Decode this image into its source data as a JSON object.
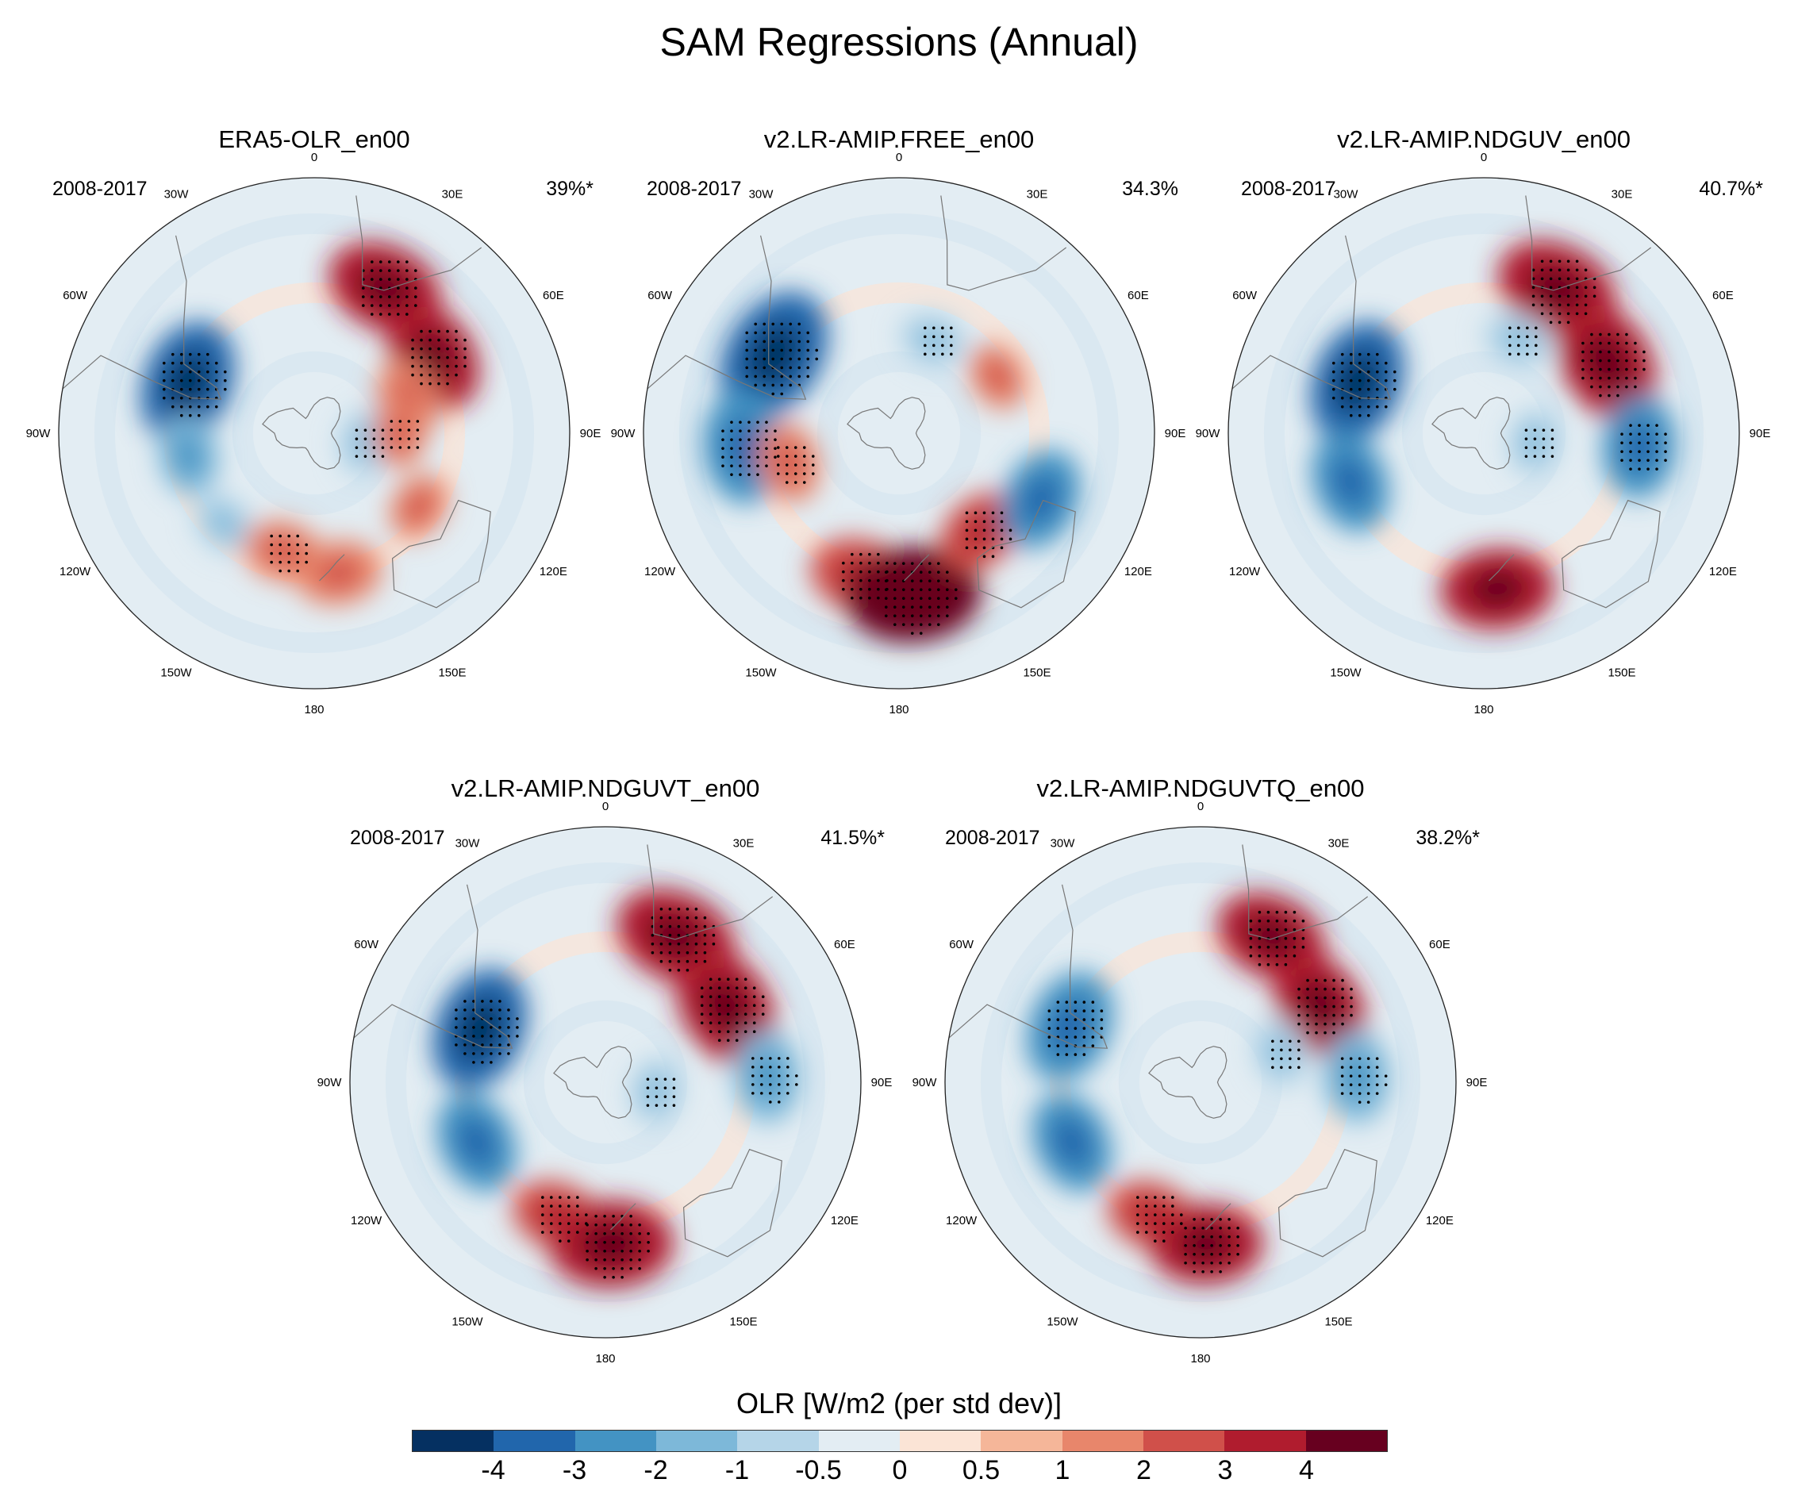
{
  "chart_data": {
    "type": "heatmap",
    "projection": "south-polar-stereographic",
    "title": "SAM Regressions (Annual)",
    "variable": "OLR",
    "colorbar": {
      "label": "OLR [W/m2 (per std dev)]",
      "ticks": [
        "-4",
        "-3",
        "-2",
        "-1",
        "-0.5",
        "0",
        "0.5",
        "1",
        "2",
        "3",
        "4"
      ],
      "colors": [
        "#053061",
        "#2166ac",
        "#4393c3",
        "#7db8d9",
        "#b5d5e8",
        "#e3edf3",
        "#fbe4d6",
        "#f5b699",
        "#e8866b",
        "#d0504a",
        "#b01c2e",
        "#67001f"
      ]
    },
    "longitude_labels": [
      "0",
      "30E",
      "60E",
      "90E",
      "120E",
      "150E",
      "180",
      "150W",
      "120W",
      "90W",
      "60W",
      "30W"
    ],
    "panels": [
      {
        "title": "ERA5-OLR_en00",
        "period": "2008-2017",
        "variance": "39%*",
        "anomalies": [
          {
            "lon": 26,
            "lat": -33,
            "value": 3.2,
            "sig": true
          },
          {
            "lon": 57,
            "lat": -40,
            "value": 3.0,
            "sig": true
          },
          {
            "lon": 70,
            "lat": -55,
            "value": 1.5,
            "sig": false
          },
          {
            "lon": -68,
            "lat": -42,
            "value": -3.5,
            "sig": true
          },
          {
            "lon": -100,
            "lat": -45,
            "value": -1.5,
            "sig": false
          },
          {
            "lon": -135,
            "lat": -45,
            "value": -1.0,
            "sig": false
          },
          {
            "lon": 100,
            "lat": -72,
            "value": -1.0,
            "sig": true
          },
          {
            "lon": -165,
            "lat": -47,
            "value": 1.5,
            "sig": true
          },
          {
            "lon": 170,
            "lat": -40,
            "value": 1.8,
            "sig": false
          },
          {
            "lon": 125,
            "lat": -45,
            "value": 1.0,
            "sig": false
          },
          {
            "lon": 90,
            "lat": -60,
            "value": 1.0,
            "sig": true
          }
        ]
      },
      {
        "title": "v2.LR-AMIP.FREE_en00",
        "period": "2008-2017",
        "variance": "34.3%",
        "anomalies": [
          {
            "lon": -58,
            "lat": -38,
            "value": -4.0,
            "sig": true
          },
          {
            "lon": -95,
            "lat": -35,
            "value": -3.0,
            "sig": true
          },
          {
            "lon": -105,
            "lat": -50,
            "value": 1.5,
            "sig": true
          },
          {
            "lon": -165,
            "lat": -38,
            "value": 2.5,
            "sig": true
          },
          {
            "lon": 175,
            "lat": -33,
            "value": 4.0,
            "sig": true
          },
          {
            "lon": 140,
            "lat": -45,
            "value": 2.0,
            "sig": true
          },
          {
            "lon": 115,
            "lat": -35,
            "value": -2.5,
            "sig": false
          },
          {
            "lon": 20,
            "lat": -55,
            "value": -1.0,
            "sig": true
          },
          {
            "lon": 60,
            "lat": -50,
            "value": 1.0,
            "sig": false
          }
        ]
      },
      {
        "title": "v2.LR-AMIP.NDGUV_en00",
        "period": "2008-2017",
        "variance": "40.7%*",
        "anomalies": [
          {
            "lon": 27,
            "lat": -33,
            "value": 3.5,
            "sig": true
          },
          {
            "lon": 60,
            "lat": -40,
            "value": 3.5,
            "sig": true
          },
          {
            "lon": 95,
            "lat": -35,
            "value": -2.5,
            "sig": true
          },
          {
            "lon": -68,
            "lat": -42,
            "value": -3.5,
            "sig": true
          },
          {
            "lon": -110,
            "lat": -40,
            "value": -2.5,
            "sig": false
          },
          {
            "lon": 175,
            "lat": -35,
            "value": 3.0,
            "sig": false
          },
          {
            "lon": 100,
            "lat": -72,
            "value": -1.0,
            "sig": true
          },
          {
            "lon": 20,
            "lat": -55,
            "value": -1.0,
            "sig": true
          }
        ]
      },
      {
        "title": "v2.LR-AMIP.NDGUVT_en00",
        "period": "2008-2017",
        "variance": "41.5%*",
        "anomalies": [
          {
            "lon": 26,
            "lat": -33,
            "value": 3.5,
            "sig": true
          },
          {
            "lon": 58,
            "lat": -40,
            "value": 3.5,
            "sig": true
          },
          {
            "lon": 88,
            "lat": -33,
            "value": -2.0,
            "sig": true
          },
          {
            "lon": -67,
            "lat": -42,
            "value": -3.5,
            "sig": true
          },
          {
            "lon": -115,
            "lat": -40,
            "value": -2.5,
            "sig": false
          },
          {
            "lon": -160,
            "lat": -40,
            "value": 2.0,
            "sig": true
          },
          {
            "lon": 178,
            "lat": -33,
            "value": 3.5,
            "sig": true
          },
          {
            "lon": 100,
            "lat": -72,
            "value": -1.0,
            "sig": true
          }
        ]
      },
      {
        "title": "v2.LR-AMIP.NDGUVTQ_en00",
        "period": "2008-2017",
        "variance": "38.2%*",
        "anomalies": [
          {
            "lon": 26,
            "lat": -33,
            "value": 3.0,
            "sig": true
          },
          {
            "lon": 57,
            "lat": -40,
            "value": 3.0,
            "sig": true
          },
          {
            "lon": 88,
            "lat": -35,
            "value": -2.0,
            "sig": true
          },
          {
            "lon": -67,
            "lat": -40,
            "value": -3.0,
            "sig": true
          },
          {
            "lon": -115,
            "lat": -40,
            "value": -2.5,
            "sig": false
          },
          {
            "lon": -160,
            "lat": -40,
            "value": 2.0,
            "sig": true
          },
          {
            "lon": 178,
            "lat": -33,
            "value": 3.0,
            "sig": true
          },
          {
            "lon": 70,
            "lat": -60,
            "value": -1.0,
            "sig": true
          }
        ]
      }
    ]
  }
}
